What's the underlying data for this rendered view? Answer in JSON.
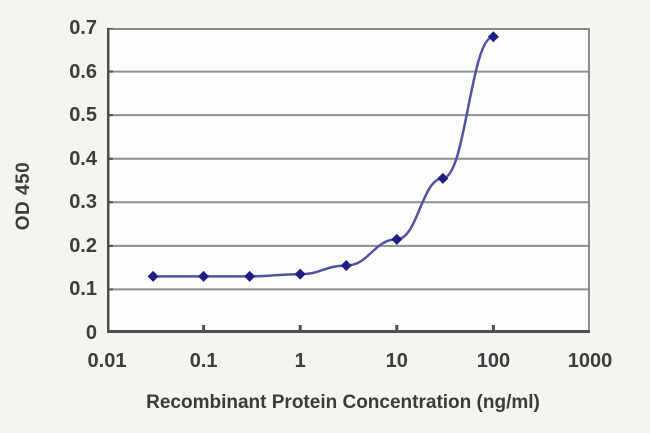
{
  "chart_data": {
    "type": "line",
    "x": [
      0.03,
      0.1,
      0.3,
      1,
      3,
      10,
      30,
      100
    ],
    "y": [
      0.13,
      0.13,
      0.13,
      0.135,
      0.155,
      0.215,
      0.355,
      0.68
    ],
    "title": "",
    "xlabel": "Recombinant Protein Concentration (ng/ml)",
    "ylabel": "OD 450",
    "x_scale": "log",
    "xlim": [
      0.01,
      1000
    ],
    "ylim": [
      0,
      0.7
    ],
    "x_tick_labels": [
      "0.01",
      "0.1",
      "1",
      "10",
      "100",
      "1000"
    ],
    "x_tick_values": [
      0.01,
      0.1,
      1,
      10,
      100,
      1000
    ],
    "y_tick_labels": [
      "0",
      "0.1",
      "0.2",
      "0.3",
      "0.4",
      "0.5",
      "0.6",
      "0.7"
    ],
    "y_tick_values": [
      0,
      0.1,
      0.2,
      0.3,
      0.4,
      0.5,
      0.6,
      0.7
    ],
    "grid": "horizontal",
    "legend_position": "none",
    "marker": "diamond",
    "colors": {
      "line": "#5252a6",
      "marker": "#1e1e85",
      "grid": "#8f8f8f",
      "axis": "#4f4f4f",
      "border": "#8a8a8a",
      "text": "#3d3d3d",
      "plot_bg": "#fdfdfb",
      "page_bg": "#f4f4f1"
    }
  }
}
